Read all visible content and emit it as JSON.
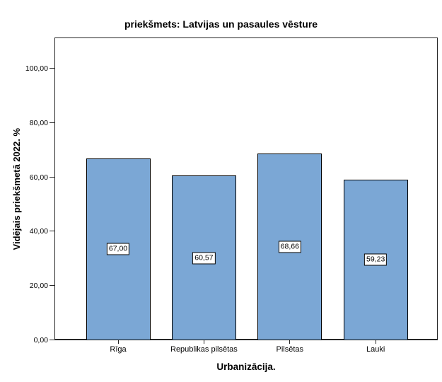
{
  "chart_data": {
    "type": "bar",
    "title": "priekšmets: Latvijas un pasaules vēsture",
    "xlabel": "Urbanizācija.",
    "ylabel": "Vidējais priekšmetā 2022. %",
    "categories": [
      "Rīga",
      "Republikas pilsētas",
      "Pilsētas",
      "Lauki"
    ],
    "values": [
      67.0,
      60.57,
      68.66,
      59.23
    ],
    "value_labels": [
      "67,00",
      "60,57",
      "68,66",
      "59,23"
    ],
    "ytick_values": [
      0,
      20,
      40,
      60,
      80,
      100
    ],
    "ytick_labels": [
      "0,00",
      "20,00",
      "40,00",
      "60,00",
      "80,00",
      "100,00"
    ],
    "ylim": [
      0,
      111.5
    ],
    "grid": false,
    "legend_position": "none",
    "colors": {
      "bar_fill": "#7BA7D5",
      "bar_border": "#000000",
      "frame": "#262626",
      "label_box_bg": "#FFFFFF",
      "label_box_border": "#000000",
      "text": "#000000",
      "background": "#FFFFFF"
    }
  }
}
